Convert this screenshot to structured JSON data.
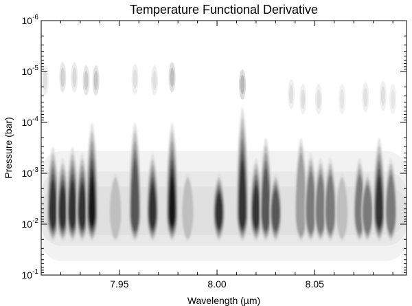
{
  "chart_data": {
    "type": "heatmap",
    "title": "Temperature Functional Derivative",
    "xlabel": "Wavelength (µm)",
    "ylabel": "Pressure (bar)",
    "xlim": [
      7.91,
      8.097
    ],
    "ylim": [
      0.1,
      1e-06
    ],
    "yscale": "log",
    "y_inverted": true,
    "grid": false,
    "colormap": "white-to-black (grayscale, filled contours)",
    "x_ticks": [
      {
        "value": 7.95,
        "label": "7.95"
      },
      {
        "value": 8.0,
        "label": "8.00"
      },
      {
        "value": 8.05,
        "label": "8.05"
      }
    ],
    "y_ticks": [
      {
        "value": 1e-06,
        "base": "10",
        "exp": "-6"
      },
      {
        "value": 1e-05,
        "base": "10",
        "exp": "-5"
      },
      {
        "value": 0.0001,
        "base": "10",
        "exp": "-4"
      },
      {
        "value": 0.001,
        "base": "10",
        "exp": "-3"
      },
      {
        "value": 0.01,
        "base": "10",
        "exp": "-2"
      },
      {
        "value": 0.1,
        "base": "10",
        "exp": "-1"
      }
    ],
    "peak_pressure_bar": 0.006,
    "features": [
      {
        "wavelength": 7.916,
        "intensity": 0.85,
        "upper_extent_bar": 0.0003
      },
      {
        "wavelength": 7.921,
        "intensity": 0.8,
        "upper_extent_bar": 0.0005
      },
      {
        "wavelength": 7.926,
        "intensity": 0.85,
        "upper_extent_bar": 0.0003
      },
      {
        "wavelength": 7.931,
        "intensity": 0.9,
        "upper_extent_bar": 0.0004
      },
      {
        "wavelength": 7.936,
        "intensity": 0.95,
        "upper_extent_bar": 0.0001
      },
      {
        "wavelength": 7.948,
        "intensity": 0.3,
        "upper_extent_bar": 0.001
      },
      {
        "wavelength": 7.958,
        "intensity": 0.75,
        "upper_extent_bar": 0.0001
      },
      {
        "wavelength": 7.967,
        "intensity": 0.8,
        "upper_extent_bar": 0.0004
      },
      {
        "wavelength": 7.977,
        "intensity": 0.95,
        "upper_extent_bar": 0.0001
      },
      {
        "wavelength": 7.985,
        "intensity": 0.35,
        "upper_extent_bar": 0.001
      },
      {
        "wavelength": 8.001,
        "intensity": 0.85,
        "upper_extent_bar": 0.001
      },
      {
        "wavelength": 8.013,
        "intensity": 0.9,
        "upper_extent_bar": 5e-05
      },
      {
        "wavelength": 8.02,
        "intensity": 0.8,
        "upper_extent_bar": 0.0005
      },
      {
        "wavelength": 8.025,
        "intensity": 0.75,
        "upper_extent_bar": 0.0002
      },
      {
        "wavelength": 8.03,
        "intensity": 0.75,
        "upper_extent_bar": 0.001
      },
      {
        "wavelength": 8.043,
        "intensity": 0.5,
        "upper_extent_bar": 0.0002
      },
      {
        "wavelength": 8.048,
        "intensity": 0.6,
        "upper_extent_bar": 0.0004
      },
      {
        "wavelength": 8.053,
        "intensity": 0.55,
        "upper_extent_bar": 0.0005
      },
      {
        "wavelength": 8.058,
        "intensity": 0.55,
        "upper_extent_bar": 0.0005
      },
      {
        "wavelength": 8.064,
        "intensity": 0.25,
        "upper_extent_bar": 0.001
      },
      {
        "wavelength": 8.073,
        "intensity": 0.6,
        "upper_extent_bar": 0.0005
      },
      {
        "wavelength": 8.077,
        "intensity": 0.65,
        "upper_extent_bar": 0.001
      },
      {
        "wavelength": 8.083,
        "intensity": 0.85,
        "upper_extent_bar": 0.0002
      },
      {
        "wavelength": 8.089,
        "intensity": 0.6,
        "upper_extent_bar": 0.0005
      }
    ],
    "upper_features": [
      {
        "wavelength": 7.912,
        "pressure_bar": 1.5e-05,
        "intensity": 0.12
      },
      {
        "wavelength": 7.921,
        "pressure_bar": 1.3e-05,
        "intensity": 0.18
      },
      {
        "wavelength": 7.927,
        "pressure_bar": 1.3e-05,
        "intensity": 0.15
      },
      {
        "wavelength": 7.933,
        "pressure_bar": 1.5e-05,
        "intensity": 0.2
      },
      {
        "wavelength": 7.938,
        "pressure_bar": 1.5e-05,
        "intensity": 0.22
      },
      {
        "wavelength": 7.958,
        "pressure_bar": 1.4e-05,
        "intensity": 0.12
      },
      {
        "wavelength": 7.968,
        "pressure_bar": 1.5e-05,
        "intensity": 0.12
      },
      {
        "wavelength": 7.977,
        "pressure_bar": 1.3e-05,
        "intensity": 0.25
      },
      {
        "wavelength": 8.013,
        "pressure_bar": 1.8e-05,
        "intensity": 0.28
      },
      {
        "wavelength": 8.038,
        "pressure_bar": 2.8e-05,
        "intensity": 0.12
      },
      {
        "wavelength": 8.044,
        "pressure_bar": 3.5e-05,
        "intensity": 0.12
      },
      {
        "wavelength": 8.052,
        "pressure_bar": 3.5e-05,
        "intensity": 0.12
      },
      {
        "wavelength": 8.064,
        "pressure_bar": 3.5e-05,
        "intensity": 0.1
      },
      {
        "wavelength": 8.076,
        "pressure_bar": 3.2e-05,
        "intensity": 0.12
      },
      {
        "wavelength": 8.085,
        "pressure_bar": 3e-05,
        "intensity": 0.12
      },
      {
        "wavelength": 8.09,
        "pressure_bar": 3.5e-05,
        "intensity": 0.1
      }
    ]
  }
}
